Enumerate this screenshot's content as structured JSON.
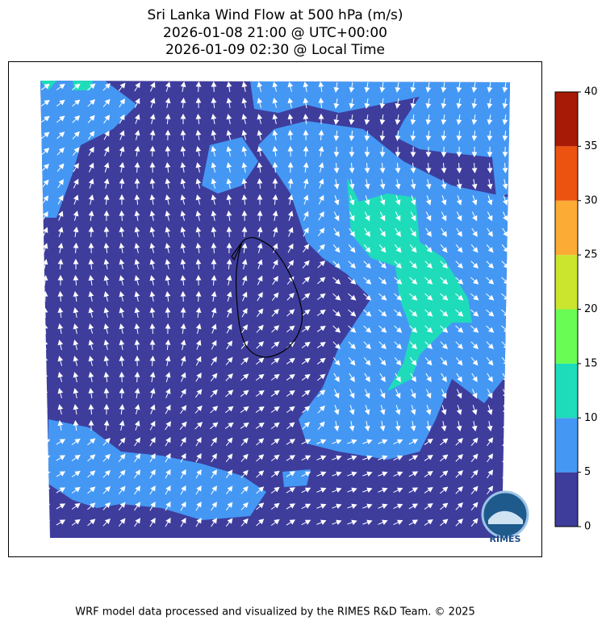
{
  "title": [
    "Sri Lanka Wind Flow at 500 hPa (m/s)",
    "2026-01-08 21:00 @ UTC+00:00",
    "2026-01-09 02:30 @ Local Time"
  ],
  "colorbar": {
    "lim": [
      0,
      40
    ],
    "ticks": [
      0,
      5,
      10,
      15,
      20,
      25,
      30,
      35,
      40
    ],
    "colors": [
      "#3e3d9c",
      "#4498f4",
      "#1edcba",
      "#69fc55",
      "#cbe52e",
      "#fcac35",
      "#ec5210",
      "#a71a05"
    ]
  },
  "logo": "RIMES",
  "footer": "WRF model data processed and visualized by the RIMES R&D Team. © 2025"
}
